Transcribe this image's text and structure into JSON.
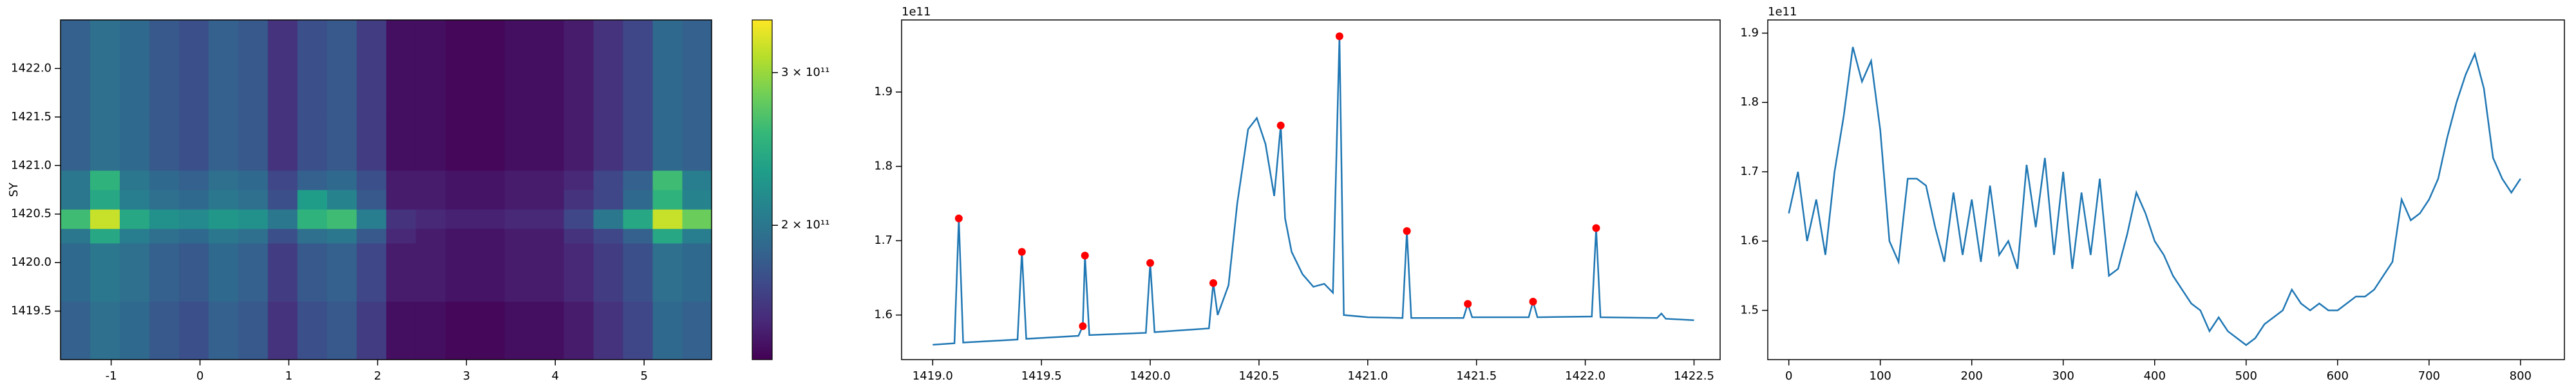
{
  "chart_data": [
    {
      "type": "heatmap",
      "ylabel": "SY",
      "colormap": "viridis",
      "xbins": [
        -1.57,
        -1.2367,
        -0.9033,
        -0.57,
        -0.2367,
        0.0967,
        0.43,
        0.7633,
        1.0967,
        1.43,
        1.7633,
        2.0967,
        2.43,
        2.7633,
        3.0967,
        3.43,
        3.7633,
        4.0967,
        4.43,
        4.7633,
        5.0967,
        5.43,
        5.76
      ],
      "ybins": [
        1419.0,
        1419.6,
        1420.2,
        1420.35,
        1420.55,
        1420.75,
        1420.95,
        1421.5,
        1422.5
      ],
      "z": [
        [
          185000000000.0,
          195000000000.0,
          190000000000.0,
          180000000000.0,
          175000000000.0,
          185000000000.0,
          180000000000.0,
          160000000000.0,
          175000000000.0,
          180000000000.0,
          165000000000.0,
          145000000000.0,
          145000000000.0,
          142000000000.0,
          142000000000.0,
          145000000000.0,
          145000000000.0,
          150000000000.0,
          160000000000.0,
          170000000000.0,
          190000000000.0,
          185000000000.0
        ],
        [
          190000000000.0,
          200000000000.0,
          195000000000.0,
          185000000000.0,
          180000000000.0,
          190000000000.0,
          185000000000.0,
          165000000000.0,
          180000000000.0,
          185000000000.0,
          170000000000.0,
          150000000000.0,
          150000000000.0,
          147000000000.0,
          147000000000.0,
          150000000000.0,
          150000000000.0,
          155000000000.0,
          165000000000.0,
          175000000000.0,
          195000000000.0,
          190000000000.0
        ],
        [
          200000000000.0,
          240000000000.0,
          205000000000.0,
          195000000000.0,
          190000000000.0,
          200000000000.0,
          195000000000.0,
          175000000000.0,
          195000000000.0,
          200000000000.0,
          180000000000.0,
          155000000000.0,
          150000000000.0,
          147000000000.0,
          147000000000.0,
          150000000000.0,
          150000000000.0,
          160000000000.0,
          170000000000.0,
          185000000000.0,
          240000000000.0,
          205000000000.0
        ],
        [
          260000000000.0,
          320000000000.0,
          240000000000.0,
          220000000000.0,
          215000000000.0,
          225000000000.0,
          220000000000.0,
          200000000000.0,
          250000000000.0,
          260000000000.0,
          205000000000.0,
          160000000000.0,
          155000000000.0,
          152000000000.0,
          152000000000.0,
          155000000000.0,
          155000000000.0,
          170000000000.0,
          200000000000.0,
          240000000000.0,
          320000000000.0,
          280000000000.0
        ],
        [
          200000000000.0,
          240000000000.0,
          205000000000.0,
          195000000000.0,
          190000000000.0,
          200000000000.0,
          195000000000.0,
          175000000000.0,
          230000000000.0,
          210000000000.0,
          180000000000.0,
          150000000000.0,
          150000000000.0,
          147000000000.0,
          147000000000.0,
          150000000000.0,
          150000000000.0,
          160000000000.0,
          170000000000.0,
          190000000000.0,
          250000000000.0,
          210000000000.0
        ],
        [
          200000000000.0,
          250000000000.0,
          200000000000.0,
          190000000000.0,
          185000000000.0,
          195000000000.0,
          190000000000.0,
          170000000000.0,
          185000000000.0,
          190000000000.0,
          175000000000.0,
          150000000000.0,
          150000000000.0,
          147000000000.0,
          147000000000.0,
          150000000000.0,
          150000000000.0,
          155000000000.0,
          170000000000.0,
          185000000000.0,
          260000000000.0,
          205000000000.0
        ],
        [
          185000000000.0,
          195000000000.0,
          190000000000.0,
          180000000000.0,
          175000000000.0,
          185000000000.0,
          180000000000.0,
          160000000000.0,
          175000000000.0,
          180000000000.0,
          165000000000.0,
          145000000000.0,
          145000000000.0,
          142000000000.0,
          142000000000.0,
          145000000000.0,
          145000000000.0,
          150000000000.0,
          160000000000.0,
          170000000000.0,
          190000000000.0,
          185000000000.0
        ],
        [
          185000000000.0,
          195000000000.0,
          190000000000.0,
          180000000000.0,
          175000000000.0,
          185000000000.0,
          180000000000.0,
          160000000000.0,
          175000000000.0,
          180000000000.0,
          165000000000.0,
          145000000000.0,
          145000000000.0,
          142000000000.0,
          142000000000.0,
          145000000000.0,
          145000000000.0,
          150000000000.0,
          160000000000.0,
          170000000000.0,
          190000000000.0,
          185000000000.0
        ]
      ],
      "xlim": [
        -1.57,
        5.76
      ],
      "ylim": [
        1419.0,
        1422.5
      ],
      "xticks": [
        -1,
        0,
        1,
        2,
        3,
        4,
        5
      ],
      "yticks": [
        1419.5,
        {
          "value": 1420,
          "label": "1420.0"
        },
        1420.5,
        {
          "value": 1421,
          "label": "1421.0"
        },
        1421.5,
        {
          "value": 1422,
          "label": "1422.0"
        }
      ],
      "colorbar": {
        "log": true,
        "clim": [
          140000000000.0,
          345000000000.0
        ],
        "ticks": [
          {
            "value": 200000000000.0,
            "label": "2 × 10¹¹"
          },
          {
            "value": 300000000000.0,
            "label": "3 × 10¹¹"
          }
        ]
      }
    },
    {
      "type": "line",
      "offset_label": "1e11",
      "x": [
        1419.0,
        1419.1,
        1419.12,
        1419.14,
        1419.39,
        1419.41,
        1419.43,
        1419.67,
        1419.69,
        1419.7,
        1419.72,
        1419.98,
        1420.0,
        1420.02,
        1420.27,
        1420.29,
        1420.31,
        1420.36,
        1420.4,
        1420.45,
        1420.49,
        1420.53,
        1420.57,
        1420.6,
        1420.62,
        1420.65,
        1420.7,
        1420.75,
        1420.8,
        1420.84,
        1420.87,
        1420.89,
        1421.0,
        1421.16,
        1421.18,
        1421.2,
        1421.44,
        1421.46,
        1421.48,
        1421.74,
        1421.76,
        1421.78,
        1422.03,
        1422.05,
        1422.07,
        1422.33,
        1422.35,
        1422.37,
        1422.5
      ],
      "series": [
        {
          "color": "#1f77b4",
          "values": [
            1.56,
            1.562,
            1.73,
            1.563,
            1.567,
            1.685,
            1.568,
            1.572,
            1.585,
            1.68,
            1.573,
            1.576,
            1.67,
            1.577,
            1.582,
            1.643,
            1.6,
            1.64,
            1.75,
            1.85,
            1.865,
            1.83,
            1.76,
            1.855,
            1.73,
            1.685,
            1.655,
            1.638,
            1.642,
            1.63,
            1.975,
            1.6,
            1.597,
            1.596,
            1.713,
            1.596,
            1.596,
            1.615,
            1.597,
            1.597,
            1.618,
            1.597,
            1.598,
            1.717,
            1.597,
            1.596,
            1.602,
            1.595,
            1.593
          ]
        }
      ],
      "markers": {
        "color": "#ff0000",
        "x": [
          1419.12,
          1419.41,
          1419.69,
          1419.7,
          1420.0,
          1420.29,
          1420.6,
          1420.87,
          1421.18,
          1421.46,
          1421.76,
          1422.05
        ],
        "values": [
          1.73,
          1.685,
          1.585,
          1.68,
          1.67,
          1.643,
          1.855,
          1.975,
          1.713,
          1.615,
          1.618,
          1.717
        ]
      },
      "xlim": [
        1418.857,
        1422.62
      ],
      "ylim": [
        1.54,
        1.997
      ],
      "xticks": [
        {
          "value": 1419,
          "label": "1419.0"
        },
        1419.5,
        {
          "value": 1420,
          "label": "1420.0"
        },
        1420.5,
        {
          "value": 1421,
          "label": "1421.0"
        },
        1421.5,
        {
          "value": 1422,
          "label": "1422.0"
        },
        1422.5
      ],
      "yticks": [
        1.6,
        1.7,
        1.8,
        1.9
      ]
    },
    {
      "type": "line",
      "offset_label": "1e11",
      "x": [
        0,
        10,
        20,
        30,
        40,
        50,
        60,
        70,
        80,
        90,
        100,
        110,
        120,
        130,
        140,
        150,
        160,
        170,
        180,
        190,
        200,
        210,
        220,
        230,
        240,
        250,
        260,
        270,
        280,
        290,
        300,
        310,
        320,
        330,
        340,
        350,
        360,
        370,
        380,
        390,
        400,
        410,
        420,
        430,
        440,
        450,
        460,
        470,
        480,
        490,
        500,
        510,
        520,
        530,
        540,
        550,
        560,
        570,
        580,
        590,
        600,
        610,
        620,
        630,
        640,
        650,
        660,
        670,
        680,
        690,
        700,
        710,
        720,
        730,
        740,
        750,
        760,
        770,
        780,
        790,
        800
      ],
      "series": [
        {
          "color": "#1f77b4",
          "values": [
            1.64,
            1.7,
            1.6,
            1.66,
            1.58,
            1.7,
            1.78,
            1.88,
            1.83,
            1.86,
            1.76,
            1.6,
            1.57,
            1.69,
            1.69,
            1.68,
            1.62,
            1.57,
            1.67,
            1.58,
            1.66,
            1.57,
            1.68,
            1.58,
            1.6,
            1.56,
            1.71,
            1.62,
            1.72,
            1.58,
            1.7,
            1.56,
            1.67,
            1.58,
            1.69,
            1.55,
            1.56,
            1.61,
            1.67,
            1.64,
            1.6,
            1.58,
            1.55,
            1.53,
            1.51,
            1.5,
            1.47,
            1.49,
            1.47,
            1.46,
            1.45,
            1.46,
            1.48,
            1.49,
            1.5,
            1.53,
            1.51,
            1.5,
            1.51,
            1.5,
            1.5,
            1.51,
            1.52,
            1.52,
            1.53,
            1.55,
            1.57,
            1.66,
            1.63,
            1.64,
            1.66,
            1.69,
            1.75,
            1.8,
            1.84,
            1.87,
            1.82,
            1.72,
            1.69,
            1.67,
            1.69
          ]
        }
      ],
      "xlim": [
        -23,
        848
      ],
      "ylim": [
        1.429,
        1.919
      ],
      "xticks": [
        0,
        100,
        200,
        300,
        400,
        500,
        600,
        700,
        800
      ],
      "yticks": [
        1.5,
        1.6,
        1.7,
        1.8,
        1.9
      ]
    }
  ]
}
